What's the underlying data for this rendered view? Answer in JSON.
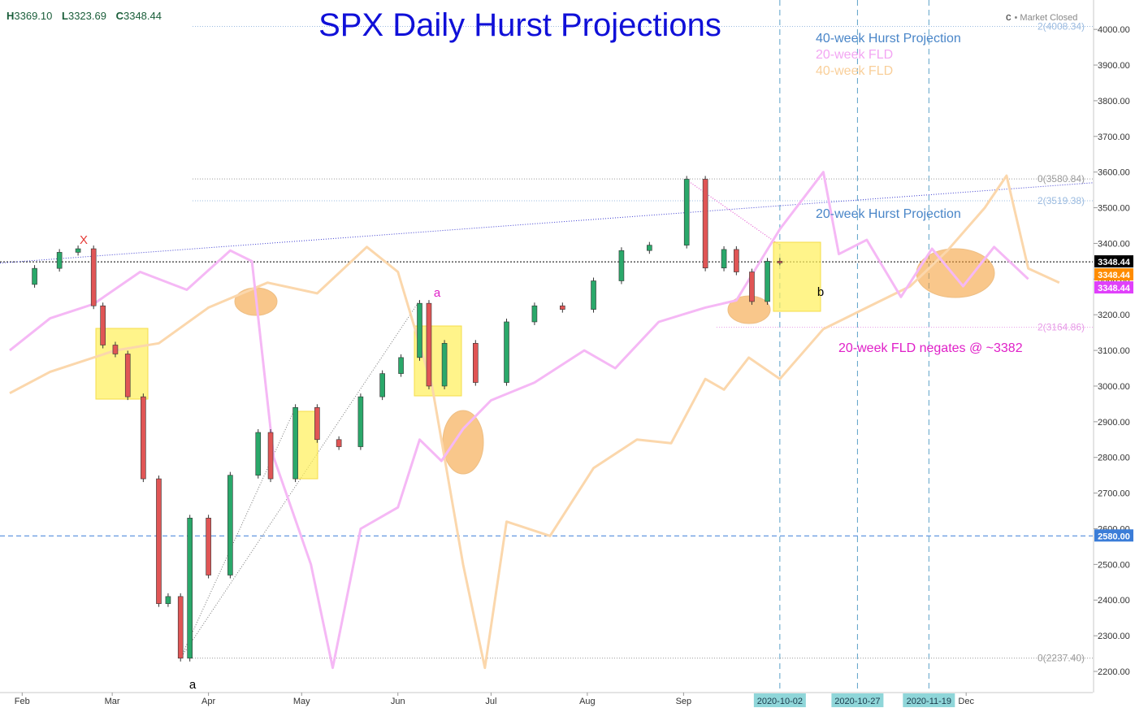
{
  "header": {
    "ohlc": [
      {
        "label": "H",
        "value": "3369.10"
      },
      {
        "label": "L",
        "value": "3323.69"
      },
      {
        "label": "C",
        "value": "3348.44"
      }
    ],
    "market_status_letter": "c",
    "market_status": "• Market Closed"
  },
  "chart_data": {
    "type": "line",
    "title": "SPX Daily Hurst Projections",
    "xlabel": "",
    "ylabel": "",
    "ylim": [
      2175,
      4060
    ],
    "y_ticks": [
      "2200.00",
      "2300.00",
      "2400.00",
      "2500.00",
      "2600.00",
      "2700.00",
      "2800.00",
      "2900.00",
      "3000.00",
      "3100.00",
      "3200.00",
      "3300.00",
      "3400.00",
      "3500.00",
      "3600.00",
      "3700.00",
      "3800.00",
      "3900.00",
      "4000.00"
    ],
    "x_ticks": [
      "Feb",
      "Mar",
      "Apr",
      "May",
      "Jun",
      "Jul",
      "Aug",
      "Sep",
      "Dec"
    ],
    "date_markers": [
      "2020-10-02",
      "2020-10-27",
      "2020-11-19"
    ],
    "price_labels": [
      {
        "value": 3348.44,
        "text": "3348.44",
        "color": "#000000"
      },
      {
        "value": 3348.44,
        "text": "3348.44",
        "color": "#ff8c00"
      },
      {
        "value": 3348.44,
        "text": "3348.44",
        "color": "#e040fb"
      },
      {
        "value": 2580.0,
        "text": "2580.00",
        "color": "#3b7dd8"
      }
    ],
    "levels": [
      {
        "value": 4008.34,
        "text": "2(4008.34)",
        "color": "#9bbbe0"
      },
      {
        "value": 3580.84,
        "text": "0(3580.84)",
        "color": "#9b9b9b"
      },
      {
        "value": 3519.38,
        "text": "2(3519.38)",
        "color": "#9bbbe0"
      },
      {
        "value": 3164.86,
        "text": "2(3164.86)",
        "color": "#e79be7"
      },
      {
        "value": 2237.4,
        "text": "0(2237.40)",
        "color": "#9b9b9b"
      }
    ],
    "legend": [
      {
        "text": "40-week Hurst Projection",
        "color": "#4a86c8"
      },
      {
        "text": "20-week FLD",
        "color": "#f3a6f3"
      },
      {
        "text": "40-week FLD",
        "color": "#f9cf9a"
      }
    ],
    "annotations": [
      {
        "text": "20-week Hurst Projection",
        "color": "#4a86c8"
      },
      {
        "text": "20-week FLD negates @ ~3382",
        "color": "#e020c8"
      },
      {
        "text": "X",
        "color": "#e53935"
      },
      {
        "text": "a",
        "color": "#e020c8"
      },
      {
        "text": "a",
        "color": "#000000"
      },
      {
        "text": "b",
        "color": "#000000"
      }
    ],
    "series": [
      {
        "values": [
          {
            "x": "2020-01-28",
            "y": 3285
          },
          {
            "x": "2020-02-05",
            "y": 3330
          },
          {
            "x": "2020-02-13",
            "y": 3375
          },
          {
            "x": "2020-02-19",
            "y": 3385
          },
          {
            "x": "2020-02-24",
            "y": 3225
          },
          {
            "x": "2020-02-27",
            "y": 3115
          },
          {
            "x": "2020-03-02",
            "y": 3090
          },
          {
            "x": "2020-03-06",
            "y": 2970
          },
          {
            "x": "2020-03-11",
            "y": 2740
          },
          {
            "x": "2020-03-16",
            "y": 2390
          },
          {
            "x": "2020-03-19",
            "y": 2410
          },
          {
            "x": "2020-03-23",
            "y": 2237
          },
          {
            "x": "2020-03-26",
            "y": 2630
          },
          {
            "x": "2020-04-01",
            "y": 2470
          },
          {
            "x": "2020-04-08",
            "y": 2750
          },
          {
            "x": "2020-04-17",
            "y": 2870
          },
          {
            "x": "2020-04-21",
            "y": 2740
          },
          {
            "x": "2020-04-29",
            "y": 2940
          },
          {
            "x": "2020-05-06",
            "y": 2850
          },
          {
            "x": "2020-05-13",
            "y": 2830
          },
          {
            "x": "2020-05-20",
            "y": 2970
          },
          {
            "x": "2020-05-27",
            "y": 3035
          },
          {
            "x": "2020-06-02",
            "y": 3080
          },
          {
            "x": "2020-06-08",
            "y": 3232
          },
          {
            "x": "2020-06-11",
            "y": 3000
          },
          {
            "x": "2020-06-16",
            "y": 3120
          },
          {
            "x": "2020-06-26",
            "y": 3010
          },
          {
            "x": "2020-07-06",
            "y": 3180
          },
          {
            "x": "2020-07-15",
            "y": 3225
          },
          {
            "x": "2020-07-24",
            "y": 3215
          },
          {
            "x": "2020-08-03",
            "y": 3295
          },
          {
            "x": "2020-08-12",
            "y": 3380
          },
          {
            "x": "2020-08-21",
            "y": 3395
          },
          {
            "x": "2020-09-02",
            "y": 3580
          },
          {
            "x": "2020-09-08",
            "y": 3331
          },
          {
            "x": "2020-09-14",
            "y": 3383
          },
          {
            "x": "2020-09-18",
            "y": 3320
          },
          {
            "x": "2020-09-23",
            "y": 3237
          },
          {
            "x": "2020-09-28",
            "y": 3350
          },
          {
            "x": "2020-10-02",
            "y": 3348
          }
        ]
      },
      {
        "name": "20-week FLD",
        "values": [
          {
            "x": "2020-01-28",
            "y": 3100
          },
          {
            "x": "2020-02-10",
            "y": 3190
          },
          {
            "x": "2020-02-24",
            "y": 3230
          },
          {
            "x": "2020-03-10",
            "y": 3320
          },
          {
            "x": "2020-03-25",
            "y": 3270
          },
          {
            "x": "2020-04-08",
            "y": 3380
          },
          {
            "x": "2020-04-15",
            "y": 3350
          },
          {
            "x": "2020-04-22",
            "y": 2800
          },
          {
            "x": "2020-05-04",
            "y": 2500
          },
          {
            "x": "2020-05-11",
            "y": 2210
          },
          {
            "x": "2020-05-20",
            "y": 2600
          },
          {
            "x": "2020-06-01",
            "y": 2660
          },
          {
            "x": "2020-06-08",
            "y": 2850
          },
          {
            "x": "2020-06-15",
            "y": 2790
          },
          {
            "x": "2020-06-22",
            "y": 2880
          },
          {
            "x": "2020-07-01",
            "y": 2960
          },
          {
            "x": "2020-07-15",
            "y": 3010
          },
          {
            "x": "2020-07-31",
            "y": 3100
          },
          {
            "x": "2020-08-10",
            "y": 3050
          },
          {
            "x": "2020-08-24",
            "y": 3180
          },
          {
            "x": "2020-09-08",
            "y": 3220
          },
          {
            "x": "2020-09-18",
            "y": 3240
          },
          {
            "x": "2020-10-02",
            "y": 3440
          },
          {
            "x": "2020-10-16",
            "y": 3600
          },
          {
            "x": "2020-10-21",
            "y": 3370
          },
          {
            "x": "2020-10-30",
            "y": 3410
          },
          {
            "x": "2020-11-10",
            "y": 3250
          },
          {
            "x": "2020-11-20",
            "y": 3385
          },
          {
            "x": "2020-11-30",
            "y": 3280
          },
          {
            "x": "2020-12-10",
            "y": 3390
          },
          {
            "x": "2020-12-21",
            "y": 3300
          }
        ]
      },
      {
        "name": "40-week FLD",
        "values": [
          {
            "x": "2020-01-28",
            "y": 2980
          },
          {
            "x": "2020-02-10",
            "y": 3040
          },
          {
            "x": "2020-03-02",
            "y": 3100
          },
          {
            "x": "2020-03-16",
            "y": 3120
          },
          {
            "x": "2020-04-01",
            "y": 3220
          },
          {
            "x": "2020-04-20",
            "y": 3290
          },
          {
            "x": "2020-05-06",
            "y": 3260
          },
          {
            "x": "2020-05-22",
            "y": 3390
          },
          {
            "x": "2020-06-01",
            "y": 3320
          },
          {
            "x": "2020-06-12",
            "y": 3000
          },
          {
            "x": "2020-06-22",
            "y": 2500
          },
          {
            "x": "2020-06-29",
            "y": 2210
          },
          {
            "x": "2020-07-06",
            "y": 2620
          },
          {
            "x": "2020-07-20",
            "y": 2580
          },
          {
            "x": "2020-08-03",
            "y": 2770
          },
          {
            "x": "2020-08-17",
            "y": 2850
          },
          {
            "x": "2020-08-28",
            "y": 2840
          },
          {
            "x": "2020-09-08",
            "y": 3020
          },
          {
            "x": "2020-09-14",
            "y": 2990
          },
          {
            "x": "2020-09-22",
            "y": 3080
          },
          {
            "x": "2020-10-02",
            "y": 3020
          },
          {
            "x": "2020-10-16",
            "y": 3160
          },
          {
            "x": "2020-10-30",
            "y": 3220
          },
          {
            "x": "2020-11-13",
            "y": 3280
          },
          {
            "x": "2020-11-25",
            "y": 3380
          },
          {
            "x": "2020-12-07",
            "y": 3500
          },
          {
            "x": "2020-12-14",
            "y": 3590
          },
          {
            "x": "2020-12-21",
            "y": 3330
          },
          {
            "x": "2020-12-31",
            "y": 3290
          }
        ]
      }
    ],
    "grid": false,
    "legend_placement": "top-center"
  }
}
